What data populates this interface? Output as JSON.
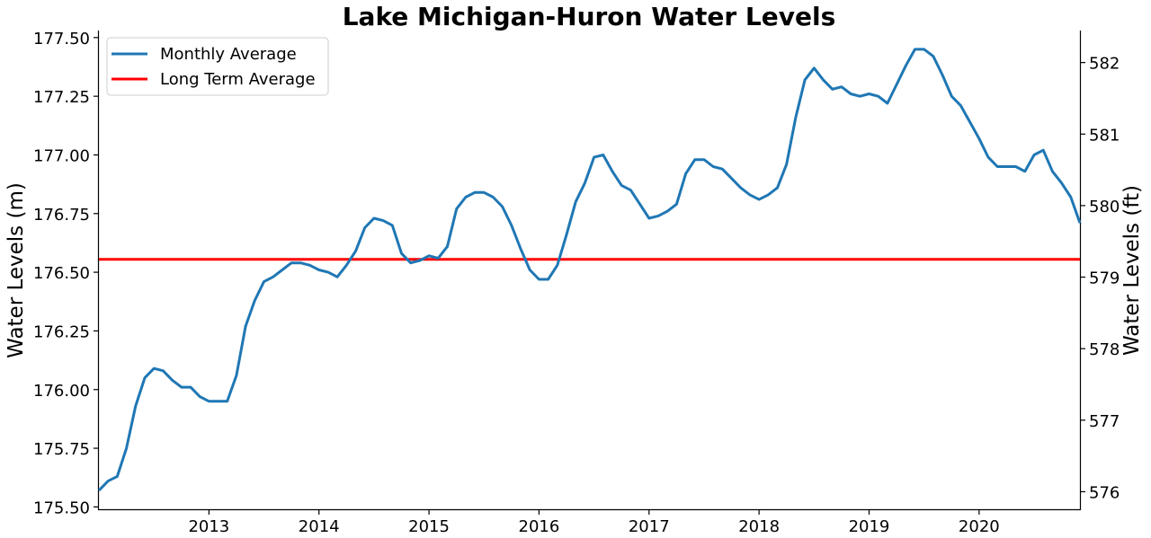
{
  "chart_data": {
    "type": "line",
    "title": "Lake Michigan-Huron Water Levels",
    "ylabel": "Water Levels (m)",
    "ylabel_right": "Water Levels (ft)",
    "xlabel": "",
    "grid": false,
    "legend_position": "top-left",
    "x_tick_labels": [
      "2013",
      "2014",
      "2015",
      "2016",
      "2017",
      "2018",
      "2019",
      "2020"
    ],
    "y_tick_labels": [
      "175.50",
      "175.75",
      "176.00",
      "176.25",
      "176.50",
      "176.75",
      "177.00",
      "177.25",
      "177.50"
    ],
    "y_right_tick_labels": [
      "576",
      "577",
      "578",
      "579",
      "580",
      "581",
      "582"
    ],
    "xlim": [
      "2012-01",
      "2020-12"
    ],
    "ylim": [
      175.49,
      177.53
    ],
    "series": [
      {
        "name": "Monthly Average",
        "color": "#1f77b4",
        "x": [
          "2012-01",
          "2012-02",
          "2012-03",
          "2012-04",
          "2012-05",
          "2012-06",
          "2012-07",
          "2012-08",
          "2012-09",
          "2012-10",
          "2012-11",
          "2012-12",
          "2013-01",
          "2013-02",
          "2013-03",
          "2013-04",
          "2013-05",
          "2013-06",
          "2013-07",
          "2013-08",
          "2013-09",
          "2013-10",
          "2013-11",
          "2013-12",
          "2014-01",
          "2014-02",
          "2014-03",
          "2014-04",
          "2014-05",
          "2014-06",
          "2014-07",
          "2014-08",
          "2014-09",
          "2014-10",
          "2014-11",
          "2014-12",
          "2015-01",
          "2015-02",
          "2015-03",
          "2015-04",
          "2015-05",
          "2015-06",
          "2015-07",
          "2015-08",
          "2015-09",
          "2015-10",
          "2015-11",
          "2015-12",
          "2016-01",
          "2016-02",
          "2016-03",
          "2016-04",
          "2016-05",
          "2016-06",
          "2016-07",
          "2016-08",
          "2016-09",
          "2016-10",
          "2016-11",
          "2016-12",
          "2017-01",
          "2017-02",
          "2017-03",
          "2017-04",
          "2017-05",
          "2017-06",
          "2017-07",
          "2017-08",
          "2017-09",
          "2017-10",
          "2017-11",
          "2017-12",
          "2018-01",
          "2018-02",
          "2018-03",
          "2018-04",
          "2018-05",
          "2018-06",
          "2018-07",
          "2018-08",
          "2018-09",
          "2018-10",
          "2018-11",
          "2018-12",
          "2019-01",
          "2019-02",
          "2019-03",
          "2019-04",
          "2019-05",
          "2019-06",
          "2019-07",
          "2019-08",
          "2019-09",
          "2019-10",
          "2019-11",
          "2019-12",
          "2020-01",
          "2020-02",
          "2020-03",
          "2020-04",
          "2020-05",
          "2020-06",
          "2020-07",
          "2020-08",
          "2020-09",
          "2020-10",
          "2020-11",
          "2020-12"
        ],
        "values": [
          175.57,
          175.61,
          175.63,
          175.75,
          175.93,
          176.05,
          176.09,
          176.08,
          176.04,
          176.01,
          176.01,
          175.97,
          175.95,
          175.95,
          175.95,
          176.06,
          176.27,
          176.38,
          176.46,
          176.48,
          176.51,
          176.54,
          176.54,
          176.53,
          176.51,
          176.5,
          176.48,
          176.53,
          176.59,
          176.69,
          176.73,
          176.72,
          176.7,
          176.58,
          176.54,
          176.55,
          176.57,
          176.56,
          176.61,
          176.77,
          176.82,
          176.84,
          176.84,
          176.82,
          176.78,
          176.7,
          176.6,
          176.51,
          176.47,
          176.47,
          176.53,
          176.66,
          176.8,
          176.88,
          176.99,
          177.0,
          176.93,
          176.87,
          176.85,
          176.79,
          176.73,
          176.74,
          176.76,
          176.79,
          176.92,
          176.98,
          176.98,
          176.95,
          176.94,
          176.9,
          176.86,
          176.83,
          176.81,
          176.83,
          176.86,
          176.96,
          177.16,
          177.32,
          177.37,
          177.32,
          177.28,
          177.29,
          177.26,
          177.25,
          177.26,
          177.25,
          177.22,
          177.3,
          177.38,
          177.45,
          177.45,
          177.42,
          177.34,
          177.25,
          177.21,
          177.14,
          177.07,
          176.99,
          176.95,
          176.95,
          176.95,
          176.93,
          177.0,
          177.02,
          176.93,
          176.88,
          176.82,
          176.71
        ]
      },
      {
        "name": "Long Term Average",
        "color": "#ff0000",
        "value": 176.555
      }
    ]
  }
}
